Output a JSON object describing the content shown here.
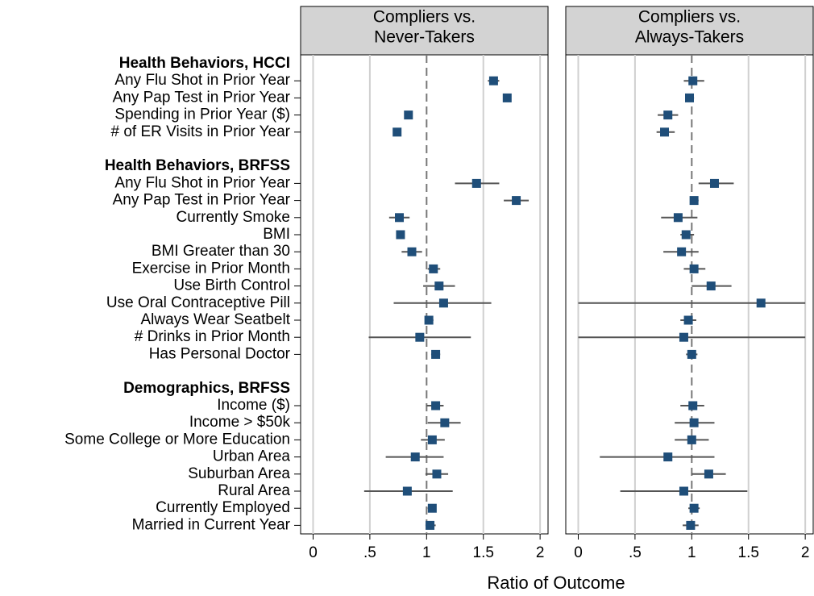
{
  "chart_data": {
    "type": "forest",
    "xlabel": "Ratio of Outcome",
    "xlim": [
      -0.11,
      2.07
    ],
    "xticks": [
      0,
      {
        "value": 0.5,
        "label": ".5"
      },
      1,
      1.5,
      2
    ],
    "reference_line": 1,
    "grid": true,
    "marker_color": "#1f4e79",
    "interval_color": "#555555",
    "groups": [
      {
        "name": "Health Behaviors, HCCI",
        "categories": [
          "Any Flu Shot in Prior Year",
          "Any Pap Test in Prior Year",
          "Spending in Prior Year ($)",
          "# of ER Visits in Prior Year"
        ]
      },
      {
        "name": "Health Behaviors, BRFSS",
        "categories": [
          "Any Flu Shot in Prior Year",
          "Any Pap Test in Prior Year",
          "Currently Smoke",
          "BMI",
          "BMI Greater than 30",
          "Exercise in Prior Month",
          "Use Birth Control",
          "Use Oral Contraceptive Pill",
          "Always Wear Seatbelt",
          "# Drinks in Prior Month",
          "Has Personal Doctor"
        ]
      },
      {
        "name": "Demographics, BRFSS",
        "categories": [
          "Income ($)",
          "Income > $50k",
          "Some College or More Education",
          "Urban Area",
          "Suburban Area",
          "Rural Area",
          "Currently Employed",
          "Married in Current Year"
        ]
      }
    ],
    "panels": [
      {
        "title": [
          "Compliers vs.",
          "Never-Takers"
        ],
        "values": [
          [
            1.59,
            1.71,
            0.84,
            0.74
          ],
          [
            1.44,
            1.79,
            0.76,
            0.77,
            0.87,
            1.06,
            1.11,
            1.15,
            1.02,
            0.94,
            1.08
          ],
          [
            1.08,
            1.16,
            1.05,
            0.9,
            1.09,
            0.83,
            1.05,
            1.03
          ]
        ],
        "lower": [
          [
            1.54,
            1.69,
            0.82,
            0.72
          ],
          [
            1.25,
            1.68,
            0.67,
            0.75,
            0.78,
            1.01,
            0.97,
            0.71,
            0.99,
            0.49,
            1.04
          ],
          [
            1.0,
            1.01,
            0.95,
            0.64,
            0.99,
            0.45,
            1.01,
            0.99
          ]
        ],
        "upper": [
          [
            1.64,
            1.73,
            0.86,
            0.76
          ],
          [
            1.64,
            1.9,
            0.85,
            0.79,
            0.96,
            1.12,
            1.25,
            1.57,
            1.06,
            1.39,
            1.12
          ],
          [
            1.15,
            1.3,
            1.16,
            1.15,
            1.19,
            1.23,
            1.08,
            1.08
          ]
        ]
      },
      {
        "title": [
          "Compliers vs.",
          "Always-Takers"
        ],
        "values": [
          [
            1.01,
            0.98,
            0.79,
            0.76
          ],
          [
            1.2,
            1.02,
            0.88,
            0.95,
            0.91,
            1.02,
            1.17,
            1.61,
            0.97,
            0.93,
            1.0
          ],
          [
            1.01,
            1.02,
            1.0,
            0.79,
            1.15,
            0.93,
            1.02,
            0.99
          ]
        ],
        "lower": [
          [
            0.93,
            0.95,
            0.7,
            0.69
          ],
          [
            1.06,
            0.99,
            0.73,
            0.9,
            0.75,
            0.93,
            1.0,
            0,
            0.9,
            0,
            0.95
          ],
          [
            0.9,
            0.85,
            0.85,
            0.19,
            1.0,
            0.37,
            0.97,
            0.92
          ]
        ],
        "upper": [
          [
            1.11,
            1.02,
            0.88,
            0.85
          ],
          [
            1.37,
            1.06,
            1.05,
            1.02,
            1.06,
            1.12,
            1.35,
            2,
            1.04,
            2,
            1.05
          ],
          [
            1.11,
            1.2,
            1.15,
            1.2,
            1.3,
            1.49,
            1.07,
            1.06
          ]
        ]
      }
    ]
  }
}
